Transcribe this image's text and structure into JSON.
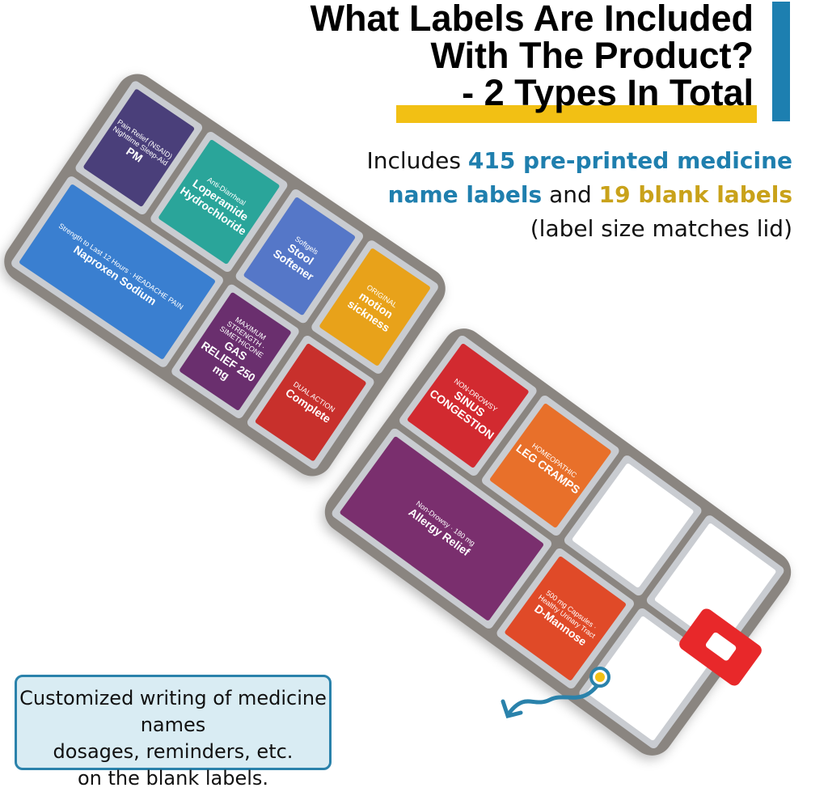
{
  "header": {
    "title_lines": [
      "What Labels Are Included",
      "With The Product?",
      "- 2 Types In Total"
    ],
    "accent_blue": "#1d7fb0",
    "accent_yellow": "#f2c014"
  },
  "subtitle": {
    "prefix": "Includes ",
    "preprinted": "415 pre-printed medicine",
    "preprinted2": "name labels",
    "and": " and ",
    "blank": "19 blank labels",
    "note": "(label size matches lid)"
  },
  "callout": {
    "lines": [
      "Customized writing of medicine names",
      "dosages, reminders, etc.",
      "on the blank labels."
    ]
  },
  "product": {
    "left_labels": [
      {
        "name": "PM",
        "sub": "Pain Relief (NSAID) Nighttime Sleep-Aid",
        "color": "#4a3f7a"
      },
      {
        "name": "Loperamide Hydrochloride",
        "sub": "Anti-Diarrheal",
        "color": "#2aa59a"
      },
      {
        "name": "Stool Softener",
        "sub": "Softgels",
        "color": "#5577c8"
      },
      {
        "name": "motion sickness",
        "sub": "ORIGINAL",
        "color": "#e8a21a"
      },
      {
        "name": "Naproxen Sodium",
        "sub": "Strength to Last 12 Hours · HEADACHE PAIN",
        "color": "#3a7fd0"
      },
      {
        "name": "GAS RELIEF 250 mg",
        "sub": "MAXIMUM STRENGTH · SIMETHICONE",
        "color": "#6a2f6e"
      },
      {
        "name": "Complete",
        "sub": "DUAL ACTION",
        "color": "#c8302c"
      }
    ],
    "right_labels": [
      {
        "name": "SINUS CONGESTION",
        "sub": "NON-DROWSY",
        "color": "#d22a30"
      },
      {
        "name": "LEG CRAMPS",
        "sub": "HOMEOPATHIC",
        "color": "#e8702a"
      },
      {
        "name": "",
        "sub": "",
        "color": "#ffffff"
      },
      {
        "name": "",
        "sub": "",
        "color": "#ffffff"
      },
      {
        "name": "Allergy Relief",
        "sub": "Non-Drowsy · 180 mg",
        "color": "#7a2f6e"
      },
      {
        "name": "D-Mannose",
        "sub": "500 mg Capsules · Healthy Urinary Tract",
        "color": "#e04a28"
      },
      {
        "name": "",
        "sub": "",
        "color": "#ffffff"
      }
    ]
  }
}
